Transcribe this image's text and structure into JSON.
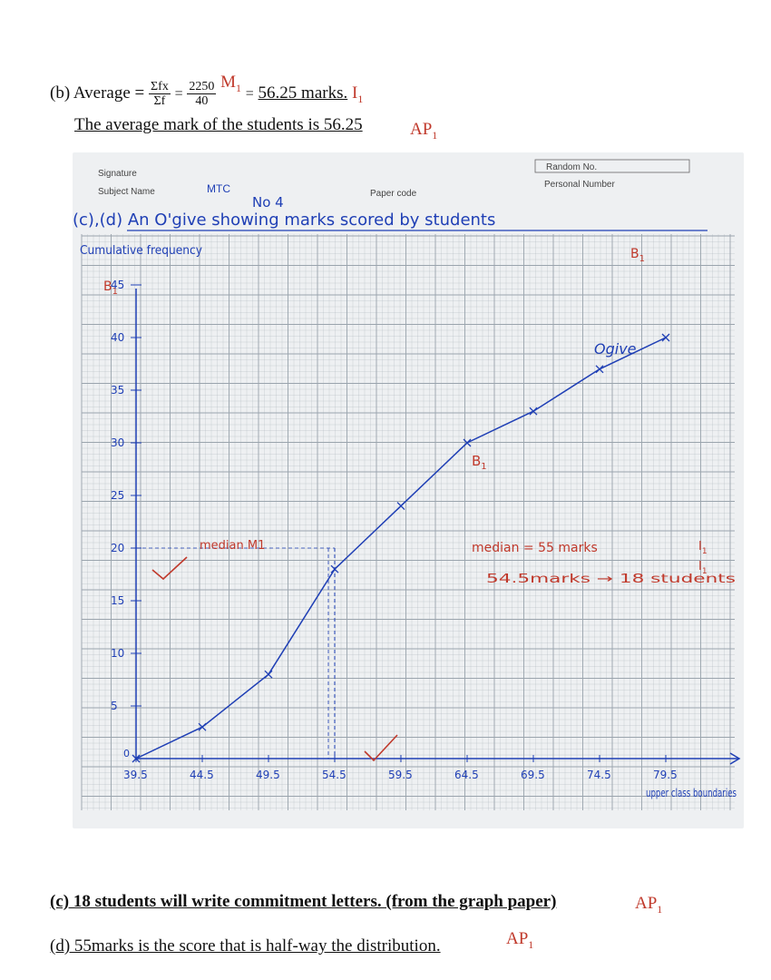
{
  "part_b": {
    "label": "(b) Average =",
    "frac1_num": "Σfx",
    "frac1_den": "Σf",
    "eq1": "=",
    "frac2_num": "2250",
    "frac2_den": "40",
    "mark_m": "M",
    "mark_m_sub": "1",
    "eq2": "=",
    "result": "56.25 marks.",
    "mark_i": "I",
    "mark_i_sub": "1",
    "conclusion": "The average mark of the students is 56.25",
    "ap": "AP",
    "ap_sub": "1"
  },
  "graph_paper": {
    "header": {
      "signature_label": "Signature",
      "subject_label": "Subject Name",
      "subject_value": "MTC",
      "paper_code_label": "Paper code",
      "random_no_label": "Random No.",
      "personal_number_label": "Personal Number",
      "sheet_no": "No 4"
    },
    "title": "(c),(d) An O'give showing marks scored by students",
    "y_axis_label": "Cumulative frequency",
    "ogive_label": "Ogive",
    "median_note": "median M1",
    "answer_note1": "median = 55 marks",
    "answer_note2": "54.5marks → 18 students",
    "x_axis_note": "upper class boundaries",
    "marks": {
      "b": "B",
      "b_sub": "1",
      "i": "I",
      "i_sub": "1"
    },
    "colors": {
      "grid": "#9aa4ad",
      "ink": "#1f3fb5",
      "paper": "#eef0f2",
      "red": "#c0392b"
    }
  },
  "chart_data": {
    "type": "line",
    "title": "An O'give showing marks scored by students",
    "xlabel": "upper class boundaries",
    "ylabel": "Cumulative frequency",
    "x_tick_labels": [
      "39.5",
      "44.5",
      "49.5",
      "54.5",
      "59.5",
      "64.5",
      "69.5",
      "74.5",
      "79.5"
    ],
    "y_tick_labels": [
      "0",
      "5",
      "10",
      "15",
      "20",
      "25",
      "30",
      "35",
      "40",
      "45"
    ],
    "xlim": [
      39.5,
      79.5
    ],
    "ylim": [
      0,
      45
    ],
    "series": [
      {
        "name": "Ogive",
        "x": [
          39.5,
          44.5,
          49.5,
          54.5,
          59.5,
          64.5,
          69.5,
          74.5,
          79.5
        ],
        "y": [
          0,
          3,
          8,
          18,
          24,
          30,
          33,
          37,
          40
        ]
      }
    ],
    "annotations": [
      {
        "text": "median",
        "x": 54.5,
        "y": 20
      },
      {
        "text": "54.5marks → 18 students",
        "x": 54.5,
        "y": 18
      }
    ],
    "grid": true
  },
  "part_c": {
    "text": "(c) 18 students will write commitment letters.  (from the graph paper)",
    "ap": "AP",
    "ap_sub": "1"
  },
  "part_d": {
    "text": "(d) 55marks is the score that is half-way the distribution.",
    "ap": "AP",
    "ap_sub": "1"
  }
}
